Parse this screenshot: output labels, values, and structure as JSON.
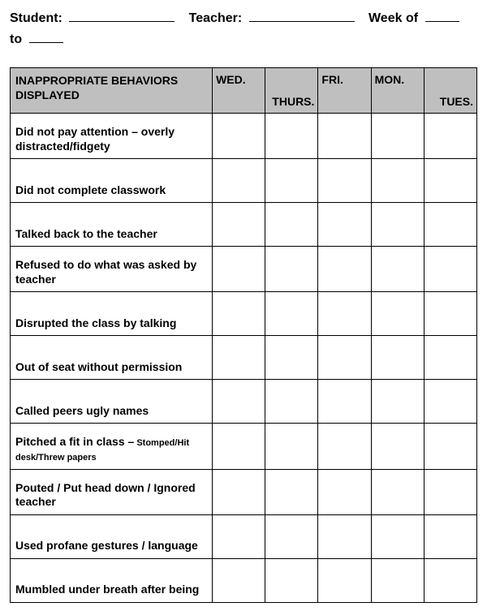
{
  "header": {
    "student_label": "Student:",
    "teacher_label": "Teacher:",
    "week_label": "Week of",
    "to_label": "to"
  },
  "table": {
    "header_title_line1": "INAPPROPRIATE BEHAVIORS",
    "header_title_line2": "DISPLAYED",
    "days": [
      "WED.",
      "THURS.",
      "FRI.",
      "MON.",
      "TUES."
    ],
    "day_align": [
      "top",
      "bottom",
      "top",
      "top",
      "bottom"
    ],
    "rows": [
      {
        "text": "Did not pay attention – overly distracted/fidgety",
        "detail": ""
      },
      {
        "text": "Did not complete classwork",
        "detail": ""
      },
      {
        "text": "Talked back to the teacher",
        "detail": ""
      },
      {
        "text": "Refused to do what was asked by teacher",
        "detail": ""
      },
      {
        "text": "Disrupted the class by talking",
        "detail": ""
      },
      {
        "text": "Out of seat without permission",
        "detail": ""
      },
      {
        "text": "Called peers ugly names",
        "detail": ""
      },
      {
        "text": "Pitched a fit in class –",
        "detail": " Stomped/Hit desk/Threw papers"
      },
      {
        "text": "Pouted / Put head down / Ignored teacher",
        "detail": ""
      },
      {
        "text": "Used profane gestures / language",
        "detail": ""
      },
      {
        "text": "Mumbled under breath after being",
        "detail": ""
      }
    ],
    "col_widths": {
      "behavior": 214,
      "day": 56
    },
    "colors": {
      "header_bg": "#bfbfbf",
      "border": "#000000",
      "page_bg": "#ffffff"
    },
    "fonts": {
      "header_size_pt": 16,
      "th_size_pt": 14,
      "row_size_pt": 14,
      "detail_size_pt": 11,
      "family": "Arial"
    }
  }
}
